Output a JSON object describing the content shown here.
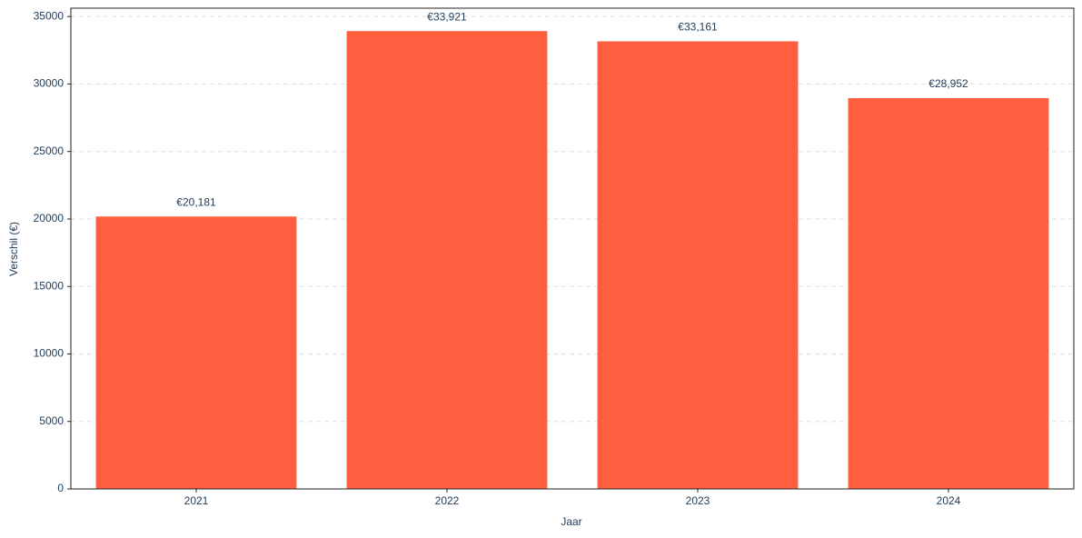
{
  "chart_data": {
    "type": "bar",
    "categories": [
      "2021",
      "2022",
      "2023",
      "2024"
    ],
    "values": [
      20181,
      33921,
      33161,
      28952
    ],
    "value_labels": [
      "€20,181",
      "€33,921",
      "€33,161",
      "€28,952"
    ],
    "color": "#ff5f3f",
    "x_label": "Jaar",
    "y_label": "Verschil (€)",
    "ylim": [
      0,
      35617
    ],
    "yticks": [
      0,
      5000,
      10000,
      15000,
      20000,
      25000,
      30000,
      35000
    ],
    "grid": true
  }
}
